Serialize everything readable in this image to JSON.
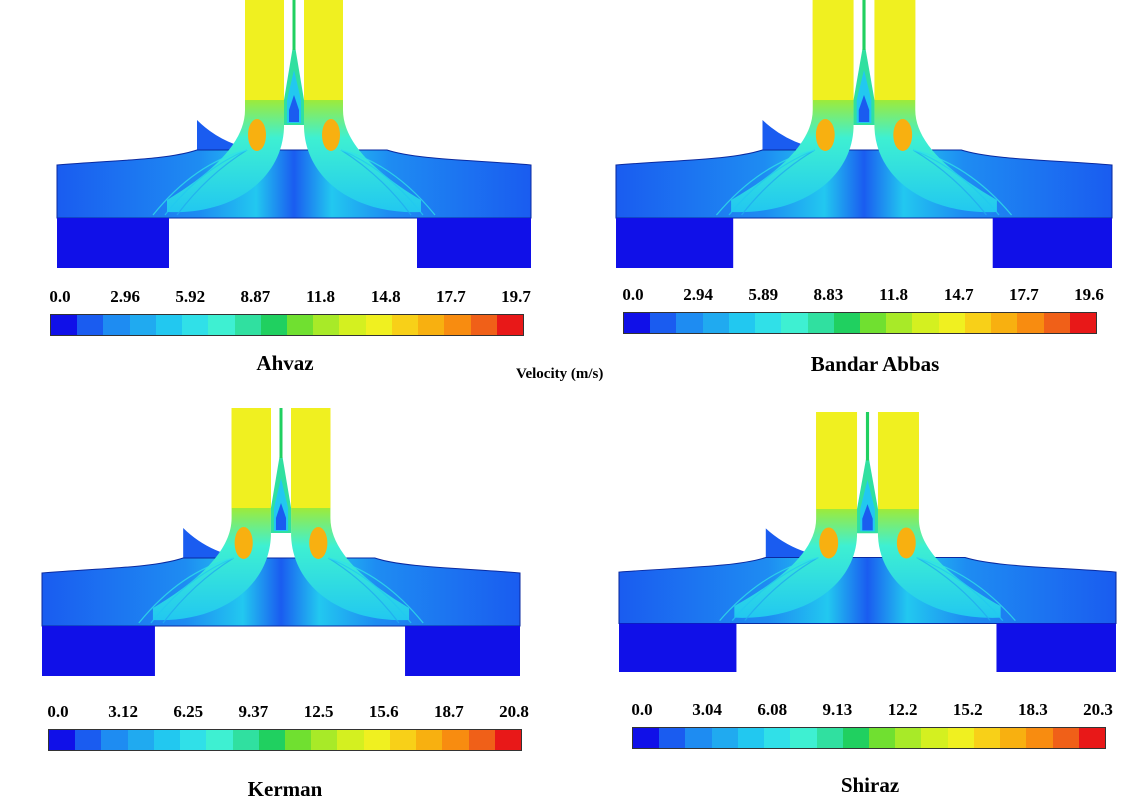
{
  "legend_title": "Velocity (m/s)",
  "colormap": [
    "#1010e8",
    "#1a5cf0",
    "#1e8cf2",
    "#20aaf0",
    "#22c8f0",
    "#30e0e8",
    "#3ef0d2",
    "#30e0a0",
    "#20d060",
    "#70e030",
    "#a8ea28",
    "#d4f020",
    "#f0f020",
    "#f8d018",
    "#f8b010",
    "#f88c10",
    "#f06018",
    "#e81818"
  ],
  "panels": [
    {
      "city": "Ahvaz",
      "ticks": [
        "0.0",
        "2.96",
        "5.92",
        "8.87",
        "11.8",
        "14.8",
        "17.7",
        "19.7"
      ]
    },
    {
      "city": "Bandar Abbas",
      "ticks": [
        "0.0",
        "2.94",
        "5.89",
        "8.83",
        "11.8",
        "14.7",
        "17.7",
        "19.6"
      ]
    },
    {
      "city": "Kerman",
      "ticks": [
        "0.0",
        "3.12",
        "6.25",
        "9.37",
        "12.5",
        "15.6",
        "18.7",
        "20.8"
      ]
    },
    {
      "city": "Shiraz",
      "ticks": [
        "0.0",
        "3.04",
        "6.08",
        "9.13",
        "12.2",
        "15.2",
        "18.3",
        "20.3"
      ]
    }
  ]
}
